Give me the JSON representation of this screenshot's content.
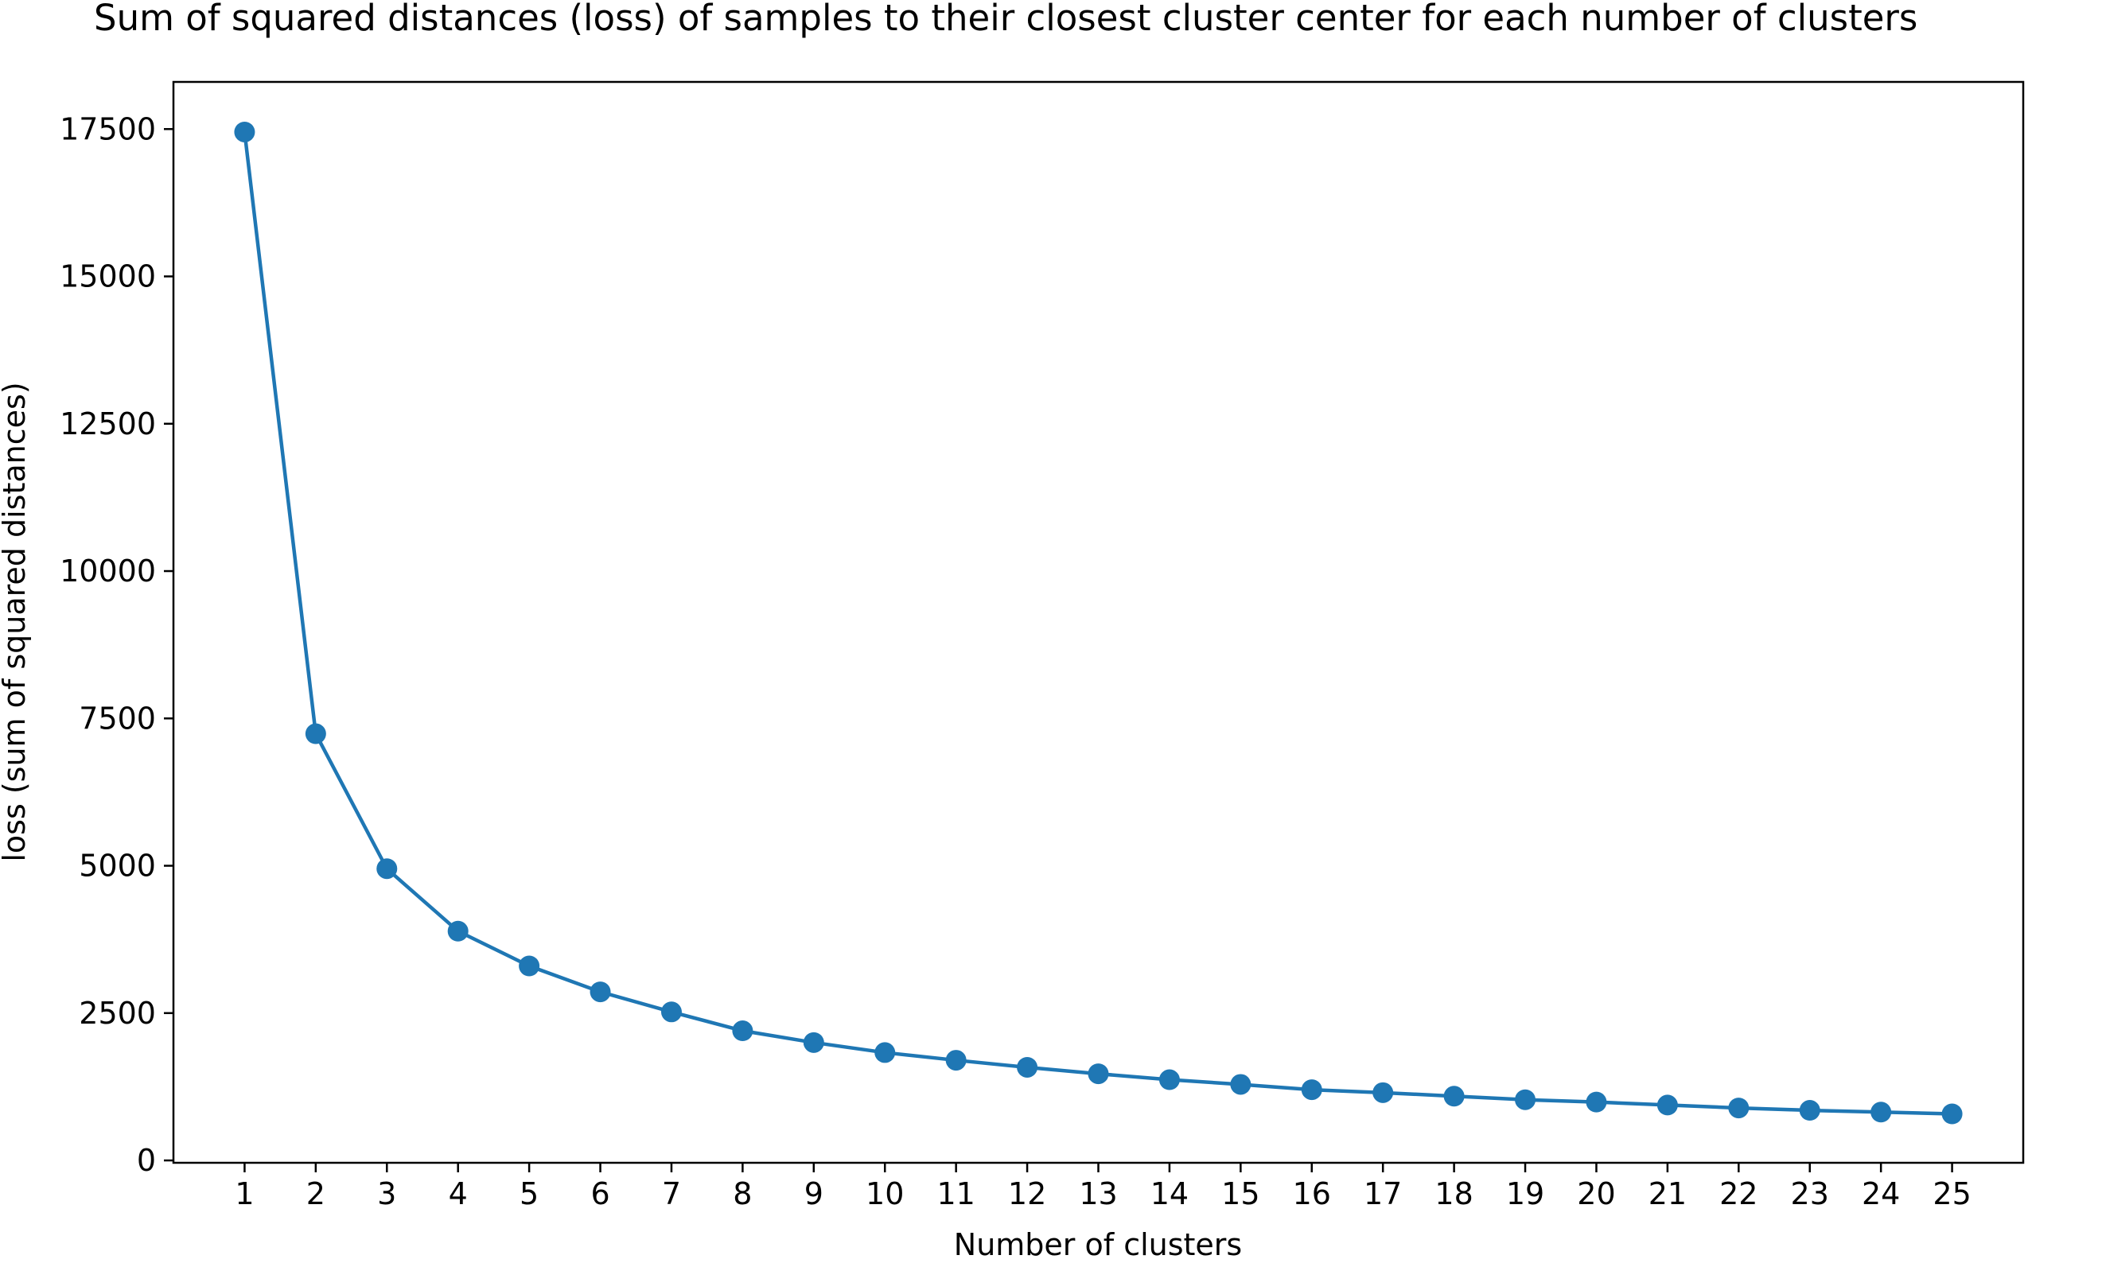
{
  "chart_data": {
    "type": "line",
    "title": "Sum of squared distances (loss) of samples to their closest cluster center for each number of clusters",
    "xlabel": "Number of clusters",
    "ylabel": "loss (sum of squared distances)",
    "x": [
      1,
      2,
      3,
      4,
      5,
      6,
      7,
      8,
      9,
      10,
      11,
      12,
      13,
      14,
      15,
      16,
      17,
      18,
      19,
      20,
      21,
      22,
      23,
      24,
      25
    ],
    "series": [
      {
        "name": "loss",
        "values": [
          17450,
          7240,
          4950,
          3890,
          3300,
          2860,
          2520,
          2200,
          2000,
          1830,
          1700,
          1580,
          1470,
          1370,
          1290,
          1200,
          1150,
          1090,
          1030,
          990,
          940,
          890,
          850,
          820,
          790
        ]
      }
    ],
    "xticks": [
      "1",
      "2",
      "3",
      "4",
      "5",
      "6",
      "7",
      "8",
      "9",
      "10",
      "11",
      "12",
      "13",
      "14",
      "15",
      "16",
      "17",
      "18",
      "19",
      "20",
      "21",
      "22",
      "23",
      "24",
      "25"
    ],
    "yticks": [
      0,
      2500,
      5000,
      7500,
      10000,
      12500,
      15000,
      17500
    ],
    "ylim": [
      -40,
      18300
    ],
    "xlim": [
      0,
      26
    ],
    "marker": "circle",
    "color": "#1f77b4",
    "grid": false,
    "legend": "none"
  }
}
